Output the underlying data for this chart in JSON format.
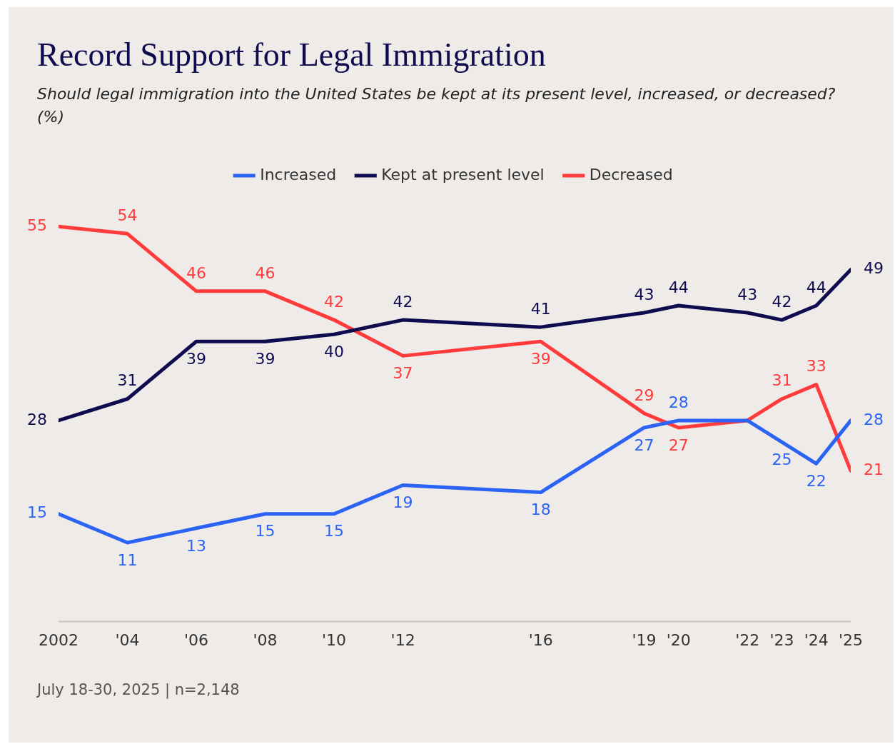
{
  "chart_data": {
    "type": "line",
    "title": "Record Support for Legal Immigration",
    "subtitle": "Should legal immigration into the United States be kept at its present level, increased, or decreased? (%)",
    "x": [
      2002,
      2004,
      2006,
      2008,
      2010,
      2012,
      2016,
      2019,
      2020,
      2022,
      2023,
      2024,
      2025
    ],
    "xlim": [
      2002,
      2025
    ],
    "xticks": [
      {
        "value": 2002,
        "label": "2002"
      },
      {
        "value": 2004,
        "label": "'04"
      },
      {
        "value": 2006,
        "label": "'06"
      },
      {
        "value": 2008,
        "label": "'08"
      },
      {
        "value": 2010,
        "label": "'10"
      },
      {
        "value": 2012,
        "label": "'12"
      },
      {
        "value": 2016,
        "label": "'16"
      },
      {
        "value": 2019,
        "label": "'19"
      },
      {
        "value": 2020,
        "label": "'20"
      },
      {
        "value": 2022,
        "label": "'22"
      },
      {
        "value": 2023,
        "label": "'23"
      },
      {
        "value": 2024,
        "label": "'24"
      },
      {
        "value": 2025,
        "label": "'25"
      }
    ],
    "tick_labels": "x",
    "grid": false,
    "legend": "top",
    "marker": "none",
    "line_style": "solid",
    "series": [
      {
        "name": "Increased",
        "color": "#2b63f5",
        "values": [
          15,
          11,
          13,
          15,
          15,
          19,
          18,
          27,
          28,
          28,
          25,
          22,
          28
        ],
        "value_labels": [
          "15",
          "11",
          "13",
          "15",
          "15",
          "19",
          "18",
          "27",
          "28",
          null,
          "25",
          "22",
          "28"
        ]
      },
      {
        "name": "Kept at present level",
        "color": "#0e0c4f",
        "values": [
          28,
          31,
          39,
          39,
          40,
          42,
          41,
          43,
          44,
          43,
          42,
          44,
          49
        ],
        "value_labels": [
          "28",
          "31",
          "39",
          "39",
          "40",
          "42",
          "41",
          "43",
          "44",
          "43",
          "42",
          "44",
          "49"
        ]
      },
      {
        "name": "Decreased",
        "color": "#ff3b3b",
        "values": [
          55,
          54,
          46,
          46,
          42,
          37,
          39,
          29,
          27,
          28,
          31,
          33,
          21
        ],
        "value_labels": [
          "55",
          "54",
          "46",
          "46",
          "42",
          "37",
          "39",
          "29",
          "27",
          null,
          "31",
          "33",
          "21"
        ]
      }
    ],
    "annotations": [
      "July 18-30, 2025 | n=2,148"
    ]
  }
}
